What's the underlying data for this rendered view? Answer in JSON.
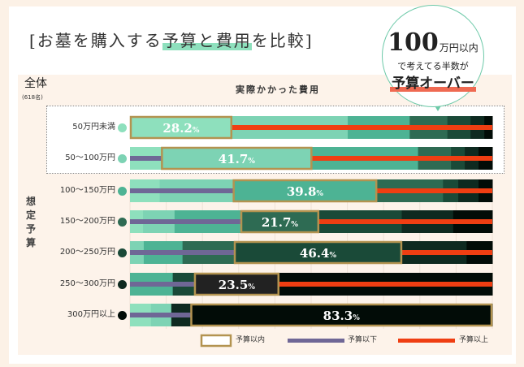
{
  "title": {
    "prefix": "[お墓を購入する",
    "highlight": "予算と費用",
    "suffix": "を比較]"
  },
  "callout": {
    "number": "100",
    "unit": "万円以内",
    "line2": "で考えてる半数が",
    "line3": "予算オーバー"
  },
  "overall_label": "全体",
  "sample_size": "(618名)",
  "y_axis_label": "想定予算",
  "chart_data": {
    "type": "bar",
    "stacked": true,
    "orientation": "horizontal",
    "x_label": "実際かかった費用",
    "y_label": "想定予算",
    "unit": "%",
    "xlim": [
      0,
      100
    ],
    "grid": true,
    "segment_colors": [
      "#8ee0bd",
      "#7dd3b4",
      "#4db394",
      "#2e6b53",
      "#1a4a38",
      "#0e2a20",
      "#020c07"
    ],
    "categories": [
      "50万円未満",
      "50〜100万円",
      "100〜150万円",
      "150〜200万円",
      "200〜250万円",
      "250〜300万円",
      "300万円以上"
    ],
    "dot_colors": [
      "#8ee0bd",
      "#7dd3b4",
      "#4db394",
      "#2e6b53",
      "#1a4a38",
      "#0e2a20",
      "#020c07"
    ],
    "box_colors": [
      "#8ee0bd",
      "#7dd3b4",
      "#4db394",
      "#2e6b53",
      "#1a4a38",
      "#222222",
      "#020c07"
    ],
    "rows": [
      {
        "segments": [
          28.2,
          31.9,
          17.1,
          10.4,
          6.4,
          3.8,
          2.2
        ],
        "within_index": 0,
        "within_label": "28.2"
      },
      {
        "segments": [
          8.6,
          41.7,
          29.2,
          9.1,
          3.8,
          3.8,
          3.8
        ],
        "within_index": 1,
        "within_label": "41.7"
      },
      {
        "segments": [
          8.2,
          20.2,
          39.8,
          18.2,
          4.2,
          5.6,
          3.8
        ],
        "within_index": 2,
        "within_label": "39.8"
      },
      {
        "segments": [
          3.6,
          8.7,
          18.2,
          21.7,
          22.8,
          14.2,
          10.8
        ],
        "within_index": 3,
        "within_label": "21.7"
      },
      {
        "segments": [
          0,
          3.8,
          10.7,
          14.2,
          46.4,
          17.8,
          7.1
        ],
        "within_index": 4,
        "within_label": "46.4"
      },
      {
        "segments": [
          0,
          0,
          11.8,
          0,
          5.9,
          23.5,
          58.8
        ],
        "within_index": 5,
        "within_label": "23.5"
      },
      {
        "segments": [
          5.8,
          5.6,
          0,
          0,
          0,
          5.3,
          83.3
        ],
        "within_index": 6,
        "within_label": "83.3"
      }
    ],
    "legend": [
      {
        "label": "予算以内",
        "color": "#b39350"
      },
      {
        "label": "予算以下",
        "color": "#6f6796"
      },
      {
        "label": "予算以上",
        "color": "#ef3e12"
      }
    ],
    "legend_placement": "bottom-right"
  }
}
